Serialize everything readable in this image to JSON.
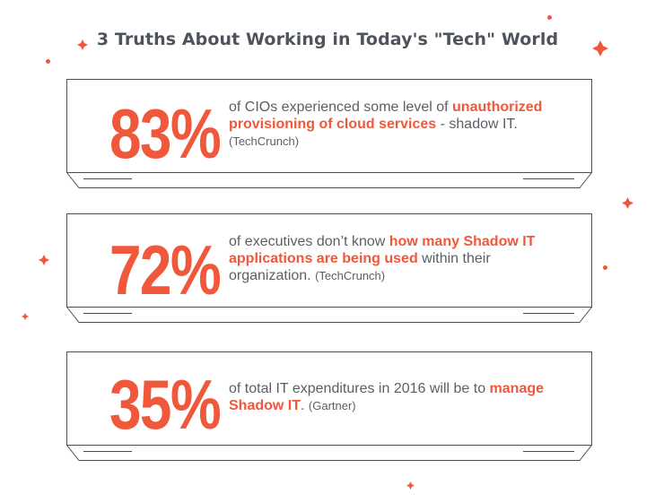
{
  "title": "3 Truths About Working in Today's \"Tech\" World",
  "accent_color": "#f0583b",
  "stats": [
    {
      "percent": "83%",
      "text_before": "of CIOs experienced some level of ",
      "highlight": "unauthorized provisioning of cloud services",
      "text_after": " - shadow IT.",
      "source": "(TechCrunch)"
    },
    {
      "percent": "72%",
      "text_before": "of executives don’t know ",
      "highlight": "how many Shadow IT applications are being used",
      "text_after": " within their organization.",
      "source": "(TechCrunch)"
    },
    {
      "percent": "35%",
      "text_before": "of total IT expenditures in 2016 will be to ",
      "highlight": "manage Shadow IT",
      "text_after": ".",
      "source": "(Gartner)"
    }
  ]
}
